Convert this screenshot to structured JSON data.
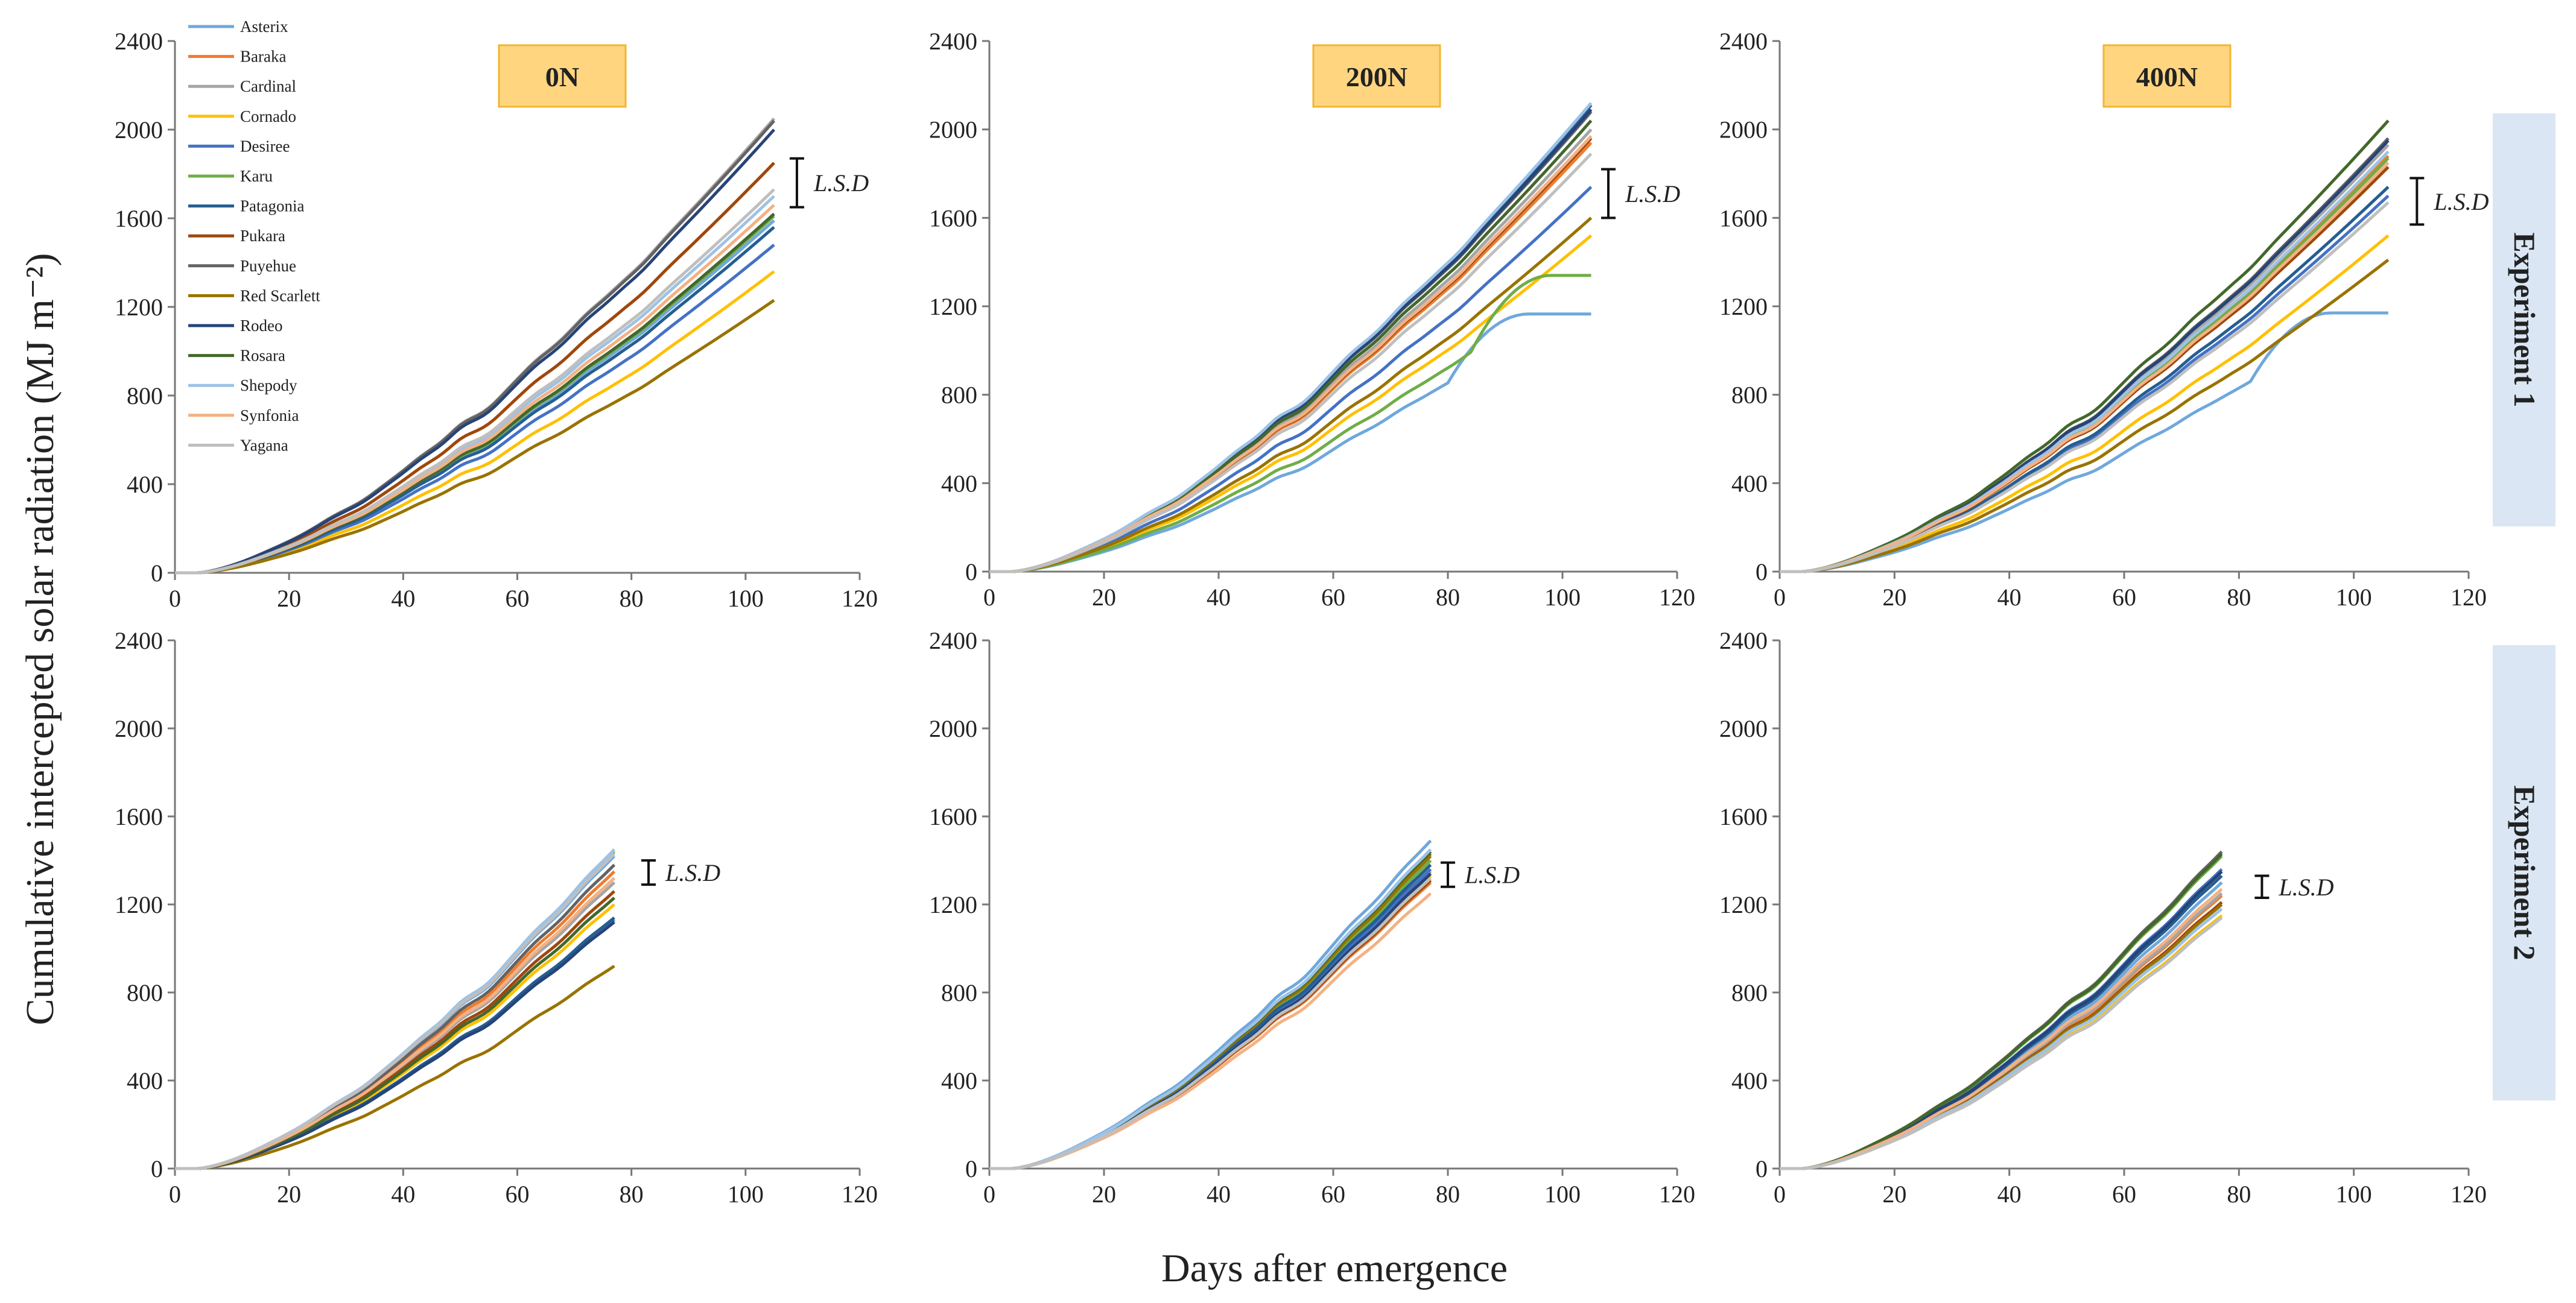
{
  "figure": {
    "y_axis_label": "Cumulative intercepted solar radiation  (MJ m⁻²)",
    "x_axis_label": "Days after emergence",
    "treatments": [
      "0N",
      "200N",
      "400N"
    ],
    "experiments": [
      "Experiment  1",
      "Experiment  2"
    ],
    "lsd_label": "L.S.D",
    "legend": [
      {
        "name": "Asterix",
        "color": "#6fa8dc"
      },
      {
        "name": "Baraka",
        "color": "#ed7d31"
      },
      {
        "name": "Cardinal",
        "color": "#a5a5a5"
      },
      {
        "name": "Cornado",
        "color": "#ffc000"
      },
      {
        "name": "Desiree",
        "color": "#4472c4"
      },
      {
        "name": "Karu",
        "color": "#70ad47"
      },
      {
        "name": "Patagonia",
        "color": "#255e91"
      },
      {
        "name": "Pukara",
        "color": "#9e480e"
      },
      {
        "name": "Puyehue",
        "color": "#636363"
      },
      {
        "name": "Red Scarlett",
        "color": "#997300"
      },
      {
        "name": "Rodeo",
        "color": "#264478"
      },
      {
        "name": "Rosara",
        "color": "#43682b"
      },
      {
        "name": "Shepody",
        "color": "#9dc3e6"
      },
      {
        "name": "Synfonia",
        "color": "#f4b183"
      },
      {
        "name": "Yagana",
        "color": "#bfbfbf"
      }
    ],
    "colors": {
      "treatment_box": "#ffd580",
      "treatment_border": "#f2b531",
      "experiment_box": "#dae6f3"
    }
  },
  "chart_data": [
    {
      "type": "line",
      "title": "0N",
      "experiment": "Experiment 1",
      "xlabel": "Days after emergence",
      "ylabel": "Cumulative intercepted solar radiation (MJ m-2)",
      "xlim": [
        0,
        120
      ],
      "ylim": [
        0,
        2400
      ],
      "xticks": [
        "0",
        "20",
        "40",
        "60",
        "80",
        "100",
        "120"
      ],
      "yticks": [
        "0",
        "400",
        "800",
        "1200",
        "1600",
        "2000",
        "2400"
      ],
      "x_end": 105,
      "series": [
        {
          "name": "Asterix",
          "final": 1590
        },
        {
          "name": "Baraka",
          "final": 1850
        },
        {
          "name": "Cardinal",
          "final": 2050
        },
        {
          "name": "Cornado",
          "final": 1360
        },
        {
          "name": "Desiree",
          "final": 1480
        },
        {
          "name": "Karu",
          "final": 1610
        },
        {
          "name": "Patagonia",
          "final": 1560
        },
        {
          "name": "Pukara",
          "final": 1850
        },
        {
          "name": "Puyehue",
          "final": 2040
        },
        {
          "name": "Red Scarlett",
          "final": 1230
        },
        {
          "name": "Rodeo",
          "final": 2000
        },
        {
          "name": "Rosara",
          "final": 1620
        },
        {
          "name": "Shepody",
          "final": 1700
        },
        {
          "name": "Synfonia",
          "final": 1660
        },
        {
          "name": "Yagana",
          "final": 1730
        }
      ],
      "lsd": {
        "x": 109,
        "y_low": 1650,
        "y_high": 1870
      }
    },
    {
      "type": "line",
      "title": "200N",
      "experiment": "Experiment 1",
      "xlim": [
        0,
        120
      ],
      "ylim": [
        0,
        2400
      ],
      "xticks": [
        "0",
        "20",
        "40",
        "60",
        "80",
        "100",
        "120"
      ],
      "yticks": [
        "0",
        "400",
        "800",
        "1200",
        "1600",
        "2000",
        "2400"
      ],
      "x_end": 105,
      "series": [
        {
          "name": "Asterix",
          "final": 1165,
          "plateau": 94
        },
        {
          "name": "Baraka",
          "final": 1940
        },
        {
          "name": "Cardinal",
          "final": 2000
        },
        {
          "name": "Cornado",
          "final": 1520
        },
        {
          "name": "Desiree",
          "final": 1740
        },
        {
          "name": "Karu",
          "final": 1340,
          "plateau": 98
        },
        {
          "name": "Patagonia",
          "final": 2110
        },
        {
          "name": "Pukara",
          "final": 1960
        },
        {
          "name": "Puyehue",
          "final": 2080
        },
        {
          "name": "Red Scarlett",
          "final": 1600
        },
        {
          "name": "Rodeo",
          "final": 2090
        },
        {
          "name": "Rosara",
          "final": 2040
        },
        {
          "name": "Shepody",
          "final": 2120
        },
        {
          "name": "Synfonia",
          "final": 1970
        },
        {
          "name": "Yagana",
          "final": 1890
        }
      ],
      "lsd": {
        "x": 108,
        "y_low": 1600,
        "y_high": 1820
      }
    },
    {
      "type": "line",
      "title": "400N",
      "experiment": "Experiment 1",
      "xlim": [
        0,
        120
      ],
      "ylim": [
        0,
        2400
      ],
      "xticks": [
        "0",
        "20",
        "40",
        "60",
        "80",
        "100",
        "120"
      ],
      "yticks": [
        "0",
        "400",
        "800",
        "1200",
        "1600",
        "2000",
        "2400"
      ],
      "x_end": 106,
      "series": [
        {
          "name": "Asterix",
          "final": 1170,
          "plateau": 96
        },
        {
          "name": "Baraka",
          "final": 1880
        },
        {
          "name": "Cardinal",
          "final": 1930
        },
        {
          "name": "Cornado",
          "final": 1520
        },
        {
          "name": "Desiree",
          "final": 1700
        },
        {
          "name": "Karu",
          "final": 1870
        },
        {
          "name": "Patagonia",
          "final": 1740
        },
        {
          "name": "Pukara",
          "final": 1830
        },
        {
          "name": "Puyehue",
          "final": 1960
        },
        {
          "name": "Red Scarlett",
          "final": 1410
        },
        {
          "name": "Rodeo",
          "final": 1950
        },
        {
          "name": "Rosara",
          "final": 2040
        },
        {
          "name": "Shepody",
          "final": 1900
        },
        {
          "name": "Synfonia",
          "final": 1850
        },
        {
          "name": "Yagana",
          "final": 1670
        }
      ],
      "lsd": {
        "x": 111,
        "y_low": 1570,
        "y_high": 1780
      }
    },
    {
      "type": "line",
      "title": "0N",
      "experiment": "Experiment 2",
      "xlim": [
        0,
        120
      ],
      "ylim": [
        0,
        2400
      ],
      "xticks": [
        "0",
        "20",
        "40",
        "60",
        "80",
        "100",
        "120"
      ],
      "yticks": [
        "0",
        "400",
        "800",
        "1200",
        "1600",
        "2000",
        "2400"
      ],
      "x_end": 77,
      "series": [
        {
          "name": "Asterix",
          "final": 1420
        },
        {
          "name": "Baraka",
          "final": 1350
        },
        {
          "name": "Cardinal",
          "final": 1300
        },
        {
          "name": "Cornado",
          "final": 1200
        },
        {
          "name": "Desiree",
          "final": 1130
        },
        {
          "name": "Karu",
          "final": 1440
        },
        {
          "name": "Patagonia",
          "final": 1140
        },
        {
          "name": "Pukara",
          "final": 1260
        },
        {
          "name": "Puyehue",
          "final": 1380
        },
        {
          "name": "Red Scarlett",
          "final": 920
        },
        {
          "name": "Rodeo",
          "final": 1120
        },
        {
          "name": "Rosara",
          "final": 1230
        },
        {
          "name": "Shepody",
          "final": 1450
        },
        {
          "name": "Synfonia",
          "final": 1320
        },
        {
          "name": "Yagana",
          "final": 1430
        }
      ],
      "lsd": {
        "x": 83,
        "y_low": 1290,
        "y_high": 1400
      }
    },
    {
      "type": "line",
      "title": "200N",
      "experiment": "Experiment 2",
      "xlim": [
        0,
        120
      ],
      "ylim": [
        0,
        2400
      ],
      "xticks": [
        "0",
        "20",
        "40",
        "60",
        "80",
        "100",
        "120"
      ],
      "yticks": [
        "0",
        "400",
        "800",
        "1200",
        "1600",
        "2000",
        "2400"
      ],
      "x_end": 77,
      "series": [
        {
          "name": "Asterix",
          "final": 1490
        },
        {
          "name": "Baraka",
          "final": 1300
        },
        {
          "name": "Cardinal",
          "final": 1350
        },
        {
          "name": "Cornado",
          "final": 1330
        },
        {
          "name": "Desiree",
          "final": 1360
        },
        {
          "name": "Karu",
          "final": 1400
        },
        {
          "name": "Patagonia",
          "final": 1380
        },
        {
          "name": "Pukara",
          "final": 1310
        },
        {
          "name": "Puyehue",
          "final": 1430
        },
        {
          "name": "Red Scarlett",
          "final": 1420
        },
        {
          "name": "Rodeo",
          "final": 1340
        },
        {
          "name": "Rosara",
          "final": 1440
        },
        {
          "name": "Shepody",
          "final": 1450
        },
        {
          "name": "Synfonia",
          "final": 1250
        },
        {
          "name": "Yagana",
          "final": 1320
        }
      ],
      "lsd": {
        "x": 80,
        "y_low": 1280,
        "y_high": 1390
      }
    },
    {
      "type": "line",
      "title": "400N",
      "experiment": "Experiment 2",
      "xlim": [
        0,
        120
      ],
      "ylim": [
        0,
        2400
      ],
      "xticks": [
        "0",
        "20",
        "40",
        "60",
        "80",
        "100",
        "120"
      ],
      "yticks": [
        "0",
        "400",
        "800",
        "1200",
        "1600",
        "2000",
        "2400"
      ],
      "x_end": 77,
      "series": [
        {
          "name": "Asterix",
          "final": 1300
        },
        {
          "name": "Baraka",
          "final": 1240
        },
        {
          "name": "Cardinal",
          "final": 1250
        },
        {
          "name": "Cornado",
          "final": 1150
        },
        {
          "name": "Desiree",
          "final": 1360
        },
        {
          "name": "Karu",
          "final": 1420
        },
        {
          "name": "Patagonia",
          "final": 1330
        },
        {
          "name": "Pukara",
          "final": 1210
        },
        {
          "name": "Puyehue",
          "final": 1440
        },
        {
          "name": "Red Scarlett",
          "final": 1200
        },
        {
          "name": "Rodeo",
          "final": 1350
        },
        {
          "name": "Rosara",
          "final": 1430
        },
        {
          "name": "Shepody",
          "final": 1180
        },
        {
          "name": "Synfonia",
          "final": 1270
        },
        {
          "name": "Yagana",
          "final": 1140
        }
      ],
      "lsd": {
        "x": 84,
        "y_low": 1230,
        "y_high": 1330
      }
    }
  ]
}
